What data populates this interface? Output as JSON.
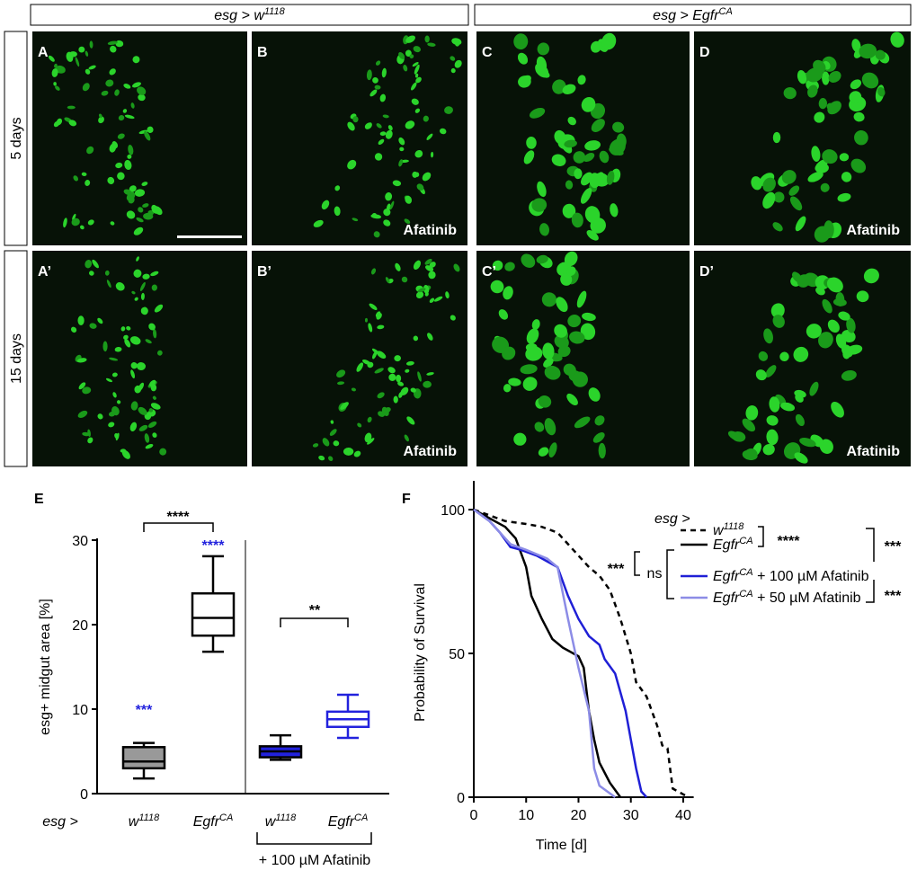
{
  "header": {
    "groups": [
      {
        "prefix": "esg > ",
        "name": "w",
        "sup": "1118"
      },
      {
        "prefix": "esg > ",
        "name": "Egfr",
        "sup": "CA"
      }
    ]
  },
  "rows": [
    "5 days",
    "15 days"
  ],
  "panels": [
    {
      "letter": "A"
    },
    {
      "letter": "B",
      "label": "Afatinib"
    },
    {
      "letter": "C"
    },
    {
      "letter": "D",
      "label": "Afatinib"
    },
    {
      "letter": "A’"
    },
    {
      "letter": "B’",
      "label": "Afatinib"
    },
    {
      "letter": "C’"
    },
    {
      "letter": "D’",
      "label": "Afatinib"
    }
  ],
  "chart_data": [
    {
      "type": "box",
      "panel": "E",
      "ylabel": "esg+ midgut area [%]",
      "ylim": [
        0,
        30
      ],
      "yticks": [
        0,
        10,
        20,
        30
      ],
      "group_prefix": "esg >",
      "treatment": "+ 100 µM Afatinib",
      "categories": [
        {
          "name": "w",
          "sup": "1118"
        },
        {
          "name": "Egfr",
          "sup": "CA"
        },
        {
          "name": "w",
          "sup": "1118"
        },
        {
          "name": "Egfr",
          "sup": "CA"
        }
      ],
      "boxes": [
        {
          "min": 1.8,
          "q1": 3.0,
          "median": 3.8,
          "q3": 5.5,
          "max": 6.0,
          "color": "#000000",
          "fill": "#999999"
        },
        {
          "min": 16.8,
          "q1": 18.7,
          "median": 20.8,
          "q3": 23.7,
          "max": 28.1,
          "color": "#000000",
          "fill": "#ffffff"
        },
        {
          "min": 4.0,
          "q1": 4.3,
          "median": 5.0,
          "q3": 5.6,
          "max": 6.9,
          "color": "#000000",
          "fill": "#2222dd"
        },
        {
          "min": 6.6,
          "q1": 7.9,
          "median": 8.8,
          "q3": 9.7,
          "max": 11.7,
          "color": "#2222dd",
          "fill": "#ffffff"
        }
      ],
      "annotations": [
        {
          "text": "****",
          "color": "#000000"
        },
        {
          "text": "****",
          "color": "#2222dd"
        },
        {
          "text": "***",
          "color": "#2222dd"
        },
        {
          "text": "**",
          "color": "#000000"
        }
      ]
    },
    {
      "type": "line",
      "panel": "F",
      "xlabel": "Time [d]",
      "ylabel": "Probability of Survival",
      "xlim": [
        0,
        42
      ],
      "xticks": [
        0,
        10,
        20,
        30,
        40
      ],
      "ylim": [
        0,
        110
      ],
      "yticks": [
        0,
        50,
        100
      ],
      "legend_title": "esg >",
      "series": [
        {
          "name": "w",
          "sup": "1118",
          "color": "#000000",
          "dashed": true,
          "x": [
            0,
            3,
            6,
            10,
            13,
            16,
            18,
            20,
            22,
            24,
            26,
            28,
            30,
            31,
            33,
            35,
            36,
            37,
            38,
            40,
            41
          ],
          "values": [
            100,
            98,
            96,
            95,
            94,
            92,
            88,
            84,
            80,
            77,
            72,
            62,
            50,
            40,
            35,
            25,
            18,
            17,
            3,
            1,
            0
          ]
        },
        {
          "name": "Egfr",
          "sup": "CA",
          "color": "#000000",
          "dashed": false,
          "x": [
            0,
            3,
            6,
            8,
            10,
            11,
            13,
            15,
            17,
            20,
            21,
            22,
            23,
            24,
            26,
            28
          ],
          "values": [
            100,
            97,
            94,
            90,
            80,
            70,
            62,
            55,
            52,
            49,
            45,
            30,
            20,
            12,
            5,
            0
          ]
        },
        {
          "name": "Egfr",
          "sup": "CA",
          "suffix": " + 100 µM Afatinib",
          "color": "#1f1fd6",
          "dashed": false,
          "x": [
            0,
            3,
            5,
            7,
            9,
            12,
            16,
            18,
            20,
            22,
            24,
            25,
            27,
            29,
            31,
            32,
            33
          ],
          "values": [
            100,
            96,
            92,
            87,
            86,
            84,
            80,
            70,
            62,
            56,
            53,
            48,
            43,
            30,
            10,
            2,
            0
          ]
        },
        {
          "name": "Egfr",
          "sup": "CA",
          "suffix": " + 50 µM Afatinib",
          "color": "#8c8ce6",
          "dashed": false,
          "x": [
            0,
            3,
            7,
            10,
            14,
            16,
            18,
            20,
            22,
            23,
            24,
            27
          ],
          "values": [
            100,
            96,
            88,
            86,
            83,
            80,
            62,
            45,
            30,
            10,
            4,
            0
          ]
        }
      ],
      "annotations": [
        "****",
        "***",
        "ns",
        "***",
        "***"
      ]
    }
  ]
}
